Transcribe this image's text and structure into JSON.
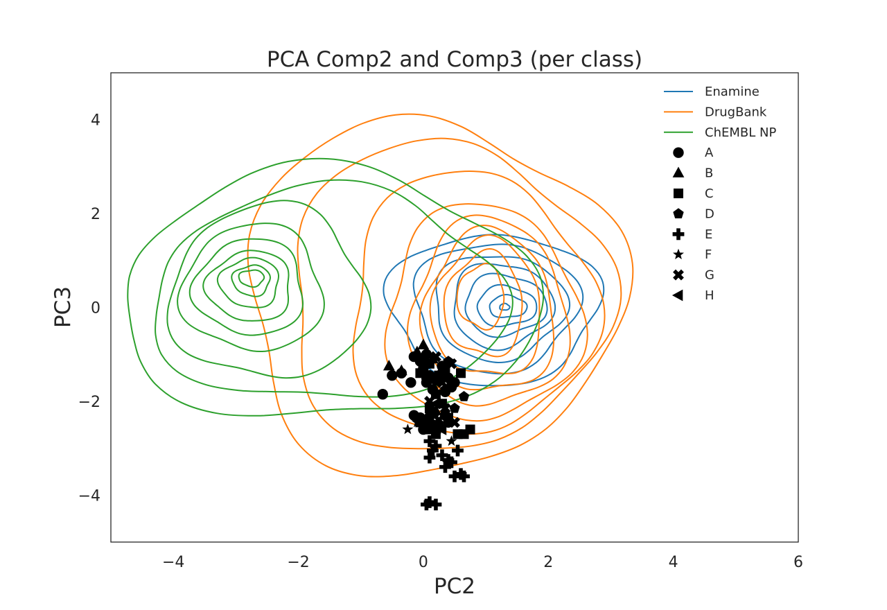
{
  "chart_data": {
    "type": "scatter",
    "title": "PCA Comp2 and Comp3 (per class)",
    "xlabel": "PC2",
    "ylabel": "PC3",
    "xlim": [
      -5,
      6
    ],
    "ylim": [
      -5,
      5
    ],
    "xticks": [
      -4,
      -2,
      0,
      2,
      4,
      6
    ],
    "xtick_labels": [
      "−4",
      "−2",
      "0",
      "2",
      "4",
      "6"
    ],
    "yticks": [
      -4,
      -2,
      0,
      2,
      4
    ],
    "ytick_labels": [
      "−4",
      "−2",
      "0",
      "2",
      "4"
    ],
    "grid": false,
    "legend_position": "top-right",
    "contours": [
      {
        "name": "Enamine",
        "color": "#1f77b4",
        "center": [
          1.3,
          0.0
        ],
        "levels": [
          {
            "x": [
              -0.55,
              2.8
            ],
            "y": [
              -1.62,
              1.6
            ]
          },
          {
            "x": [
              -0.15,
              2.45
            ],
            "y": [
              -1.35,
              1.4
            ]
          },
          {
            "x": [
              0.15,
              2.25
            ],
            "y": [
              -1.1,
              1.15
            ]
          },
          {
            "x": [
              0.45,
              2.05
            ],
            "y": [
              -0.85,
              0.95
            ]
          },
          {
            "x": [
              0.65,
              1.95
            ],
            "y": [
              -0.6,
              0.7
            ]
          },
          {
            "x": [
              0.85,
              1.8
            ],
            "y": [
              -0.4,
              0.45
            ]
          },
          {
            "x": [
              1.05,
              1.65
            ],
            "y": [
              -0.22,
              0.25
            ]
          },
          {
            "x": [
              1.22,
              1.38
            ],
            "y": [
              -0.06,
              0.08
            ]
          }
        ]
      },
      {
        "name": "DrugBank",
        "color": "#ff7f0e",
        "center": [
          0.8,
          0.6
        ],
        "levels": [
          {
            "x": [
              -2.9,
              3.1
            ],
            "y": [
              -3.55,
              4.0
            ]
          },
          {
            "x": [
              -2.2,
              2.9
            ],
            "y": [
              -3.1,
              3.5
            ]
          },
          {
            "x": [
              -1.2,
              2.7
            ],
            "y": [
              -2.75,
              2.85
            ]
          },
          {
            "x": [
              -0.6,
              2.5
            ],
            "y": [
              -2.45,
              2.15
            ]
          },
          {
            "x": [
              -0.2,
              2.3
            ],
            "y": [
              -2.15,
              1.85
            ]
          },
          {
            "x": [
              0.0,
              2.1
            ],
            "y": [
              -1.85,
              1.6
            ]
          },
          {
            "x": [
              0.15,
              1.9
            ],
            "y": [
              -1.5,
              1.4
            ]
          },
          {
            "x": [
              0.35,
              1.6
            ],
            "y": [
              -1.05,
              1.15
            ]
          },
          {
            "x": [
              0.55,
              1.3
            ],
            "y": [
              -0.45,
              0.9
            ]
          }
        ]
      },
      {
        "name": "ChEMBL NP",
        "color": "#2ca02c",
        "center": [
          -2.8,
          0.6
        ],
        "levels": [
          {
            "x": [
              -4.85,
              1.8
            ],
            "y": [
              -2.45,
              2.9
            ]
          },
          {
            "x": [
              -4.35,
              1.3
            ],
            "y": [
              -2.05,
              2.5
            ]
          },
          {
            "x": [
              -4.05,
              -0.9
            ],
            "y": [
              -1.55,
              2.15
            ]
          },
          {
            "x": [
              -3.85,
              -1.6
            ],
            "y": [
              -0.95,
              1.75
            ]
          },
          {
            "x": [
              -3.65,
              -1.9
            ],
            "y": [
              -0.6,
              1.45
            ]
          },
          {
            "x": [
              -3.45,
              -2.1
            ],
            "y": [
              -0.3,
              1.2
            ]
          },
          {
            "x": [
              -3.25,
              -2.3
            ],
            "y": [
              0.0,
              1.05
            ]
          },
          {
            "x": [
              -3.05,
              -2.45
            ],
            "y": [
              0.25,
              0.9
            ]
          },
          {
            "x": [
              -2.95,
              -2.55
            ],
            "y": [
              0.45,
              0.8
            ]
          }
        ]
      }
    ],
    "series": [
      {
        "name": "A",
        "marker": "circle",
        "points": [
          [
            -0.65,
            -1.85
          ],
          [
            -0.5,
            -1.45
          ],
          [
            -0.35,
            -1.4
          ],
          [
            -0.2,
            -1.6
          ],
          [
            -0.15,
            -1.05
          ],
          [
            -0.05,
            -1.15
          ],
          [
            0.05,
            -1.0
          ],
          [
            0.0,
            -1.3
          ],
          [
            0.1,
            -1.45
          ],
          [
            0.2,
            -1.55
          ],
          [
            0.3,
            -1.25
          ],
          [
            0.4,
            -1.5
          ],
          [
            0.5,
            -1.6
          ],
          [
            0.05,
            -1.6
          ],
          [
            0.15,
            -1.75
          ],
          [
            0.35,
            -1.8
          ],
          [
            0.45,
            -1.7
          ],
          [
            -0.05,
            -2.35
          ],
          [
            0.1,
            -2.45
          ],
          [
            0.25,
            -2.55
          ],
          [
            0.35,
            -2.3
          ],
          [
            -0.15,
            -2.3
          ],
          [
            0.0,
            -2.6
          ],
          [
            0.2,
            -2.65
          ],
          [
            0.4,
            -2.45
          ]
        ]
      },
      {
        "name": "B",
        "marker": "triangle",
        "points": [
          [
            -0.55,
            -1.25
          ],
          [
            -0.35,
            -1.35
          ],
          [
            0.0,
            -0.8
          ],
          [
            -0.1,
            -0.95
          ],
          [
            0.15,
            -1.1
          ],
          [
            0.3,
            -1.3
          ],
          [
            0.05,
            -2.35
          ],
          [
            0.2,
            -2.2
          ]
        ]
      },
      {
        "name": "C",
        "marker": "square",
        "points": [
          [
            0.0,
            -1.15
          ],
          [
            -0.05,
            -1.4
          ],
          [
            0.1,
            -1.2
          ],
          [
            0.25,
            -1.45
          ],
          [
            0.35,
            -1.35
          ],
          [
            0.6,
            -1.4
          ],
          [
            0.45,
            -1.6
          ],
          [
            0.2,
            -1.85
          ],
          [
            0.3,
            -2.05
          ],
          [
            0.1,
            -2.15
          ],
          [
            0.2,
            -2.5
          ],
          [
            0.4,
            -2.35
          ],
          [
            0.55,
            -2.7
          ],
          [
            0.65,
            -2.7
          ],
          [
            0.75,
            -2.6
          ],
          [
            0.05,
            -2.6
          ],
          [
            0.2,
            -2.7
          ],
          [
            -0.05,
            -2.45
          ]
        ]
      },
      {
        "name": "D",
        "marker": "pentagon",
        "points": [
          [
            0.65,
            -1.9
          ],
          [
            0.35,
            -1.75
          ],
          [
            0.05,
            -1.55
          ],
          [
            0.4,
            -1.15
          ],
          [
            0.5,
            -2.15
          ]
        ]
      },
      {
        "name": "E",
        "marker": "plus",
        "points": [
          [
            0.1,
            -2.85
          ],
          [
            0.2,
            -2.95
          ],
          [
            0.15,
            -3.05
          ],
          [
            0.3,
            -3.15
          ],
          [
            0.4,
            -3.25
          ],
          [
            0.45,
            -3.3
          ],
          [
            0.55,
            -3.05
          ],
          [
            0.1,
            -3.2
          ],
          [
            0.35,
            -3.4
          ],
          [
            0.5,
            -3.6
          ],
          [
            0.6,
            -3.55
          ],
          [
            0.65,
            -3.6
          ],
          [
            0.1,
            -4.15
          ],
          [
            0.2,
            -4.2
          ],
          [
            0.05,
            -4.2
          ]
        ]
      },
      {
        "name": "F",
        "marker": "star",
        "points": [
          [
            -0.25,
            -2.6
          ],
          [
            -0.1,
            -2.45
          ],
          [
            0.45,
            -2.85
          ],
          [
            0.2,
            -2.3
          ]
        ]
      },
      {
        "name": "G",
        "marker": "x",
        "points": [
          [
            0.2,
            -1.05
          ],
          [
            0.45,
            -1.2
          ],
          [
            0.3,
            -1.6
          ],
          [
            0.35,
            -2.15
          ],
          [
            0.5,
            -2.45
          ],
          [
            0.25,
            -2.4
          ],
          [
            0.1,
            -2.0
          ]
        ]
      },
      {
        "name": "H",
        "marker": "left-triangle",
        "points": [
          [
            0.2,
            -2.05
          ],
          [
            0.1,
            -2.3
          ],
          [
            0.3,
            -2.6
          ]
        ]
      }
    ],
    "legend": [
      {
        "label": "Enamine",
        "kind": "line",
        "color": "#1f77b4"
      },
      {
        "label": "DrugBank",
        "kind": "line",
        "color": "#ff7f0e"
      },
      {
        "label": "ChEMBL NP",
        "kind": "line",
        "color": "#2ca02c"
      },
      {
        "label": "A",
        "kind": "marker",
        "marker": "circle"
      },
      {
        "label": "B",
        "kind": "marker",
        "marker": "triangle"
      },
      {
        "label": "C",
        "kind": "marker",
        "marker": "square"
      },
      {
        "label": "D",
        "kind": "marker",
        "marker": "pentagon"
      },
      {
        "label": "E",
        "kind": "marker",
        "marker": "plus"
      },
      {
        "label": "F",
        "kind": "marker",
        "marker": "star"
      },
      {
        "label": "G",
        "kind": "marker",
        "marker": "x"
      },
      {
        "label": "H",
        "kind": "marker",
        "marker": "left-triangle"
      }
    ]
  }
}
